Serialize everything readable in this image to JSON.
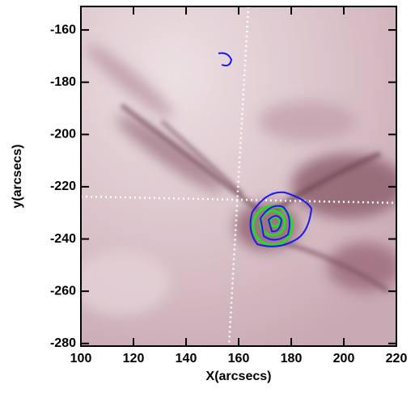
{
  "chart_data": {
    "type": "image",
    "x_label": "X(arcsecs)",
    "y_label": "y(arcsecs)",
    "xlim": [
      100,
      220
    ],
    "ylim": [
      -281,
      -151
    ],
    "xticks": [
      100,
      120,
      140,
      160,
      180,
      200,
      220
    ],
    "yticks": [
      -160,
      -180,
      -200,
      -220,
      -240,
      -260,
      -280
    ]
  }
}
